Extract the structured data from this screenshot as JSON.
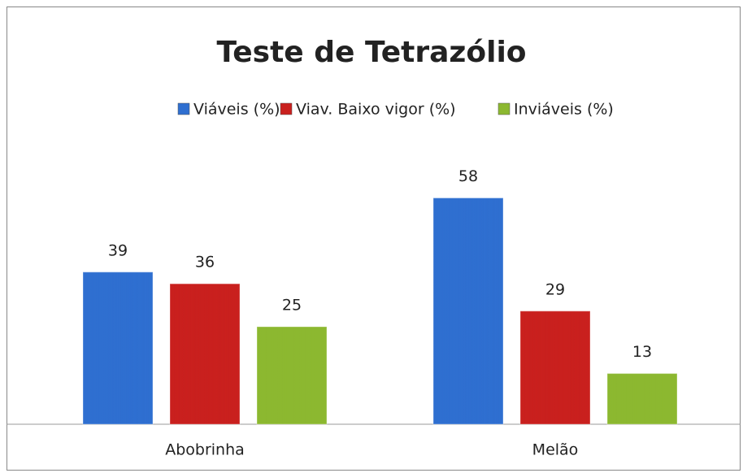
{
  "chart_data": {
    "type": "bar",
    "title": "Teste de Tetrazólio",
    "categories": [
      "Abobrinha",
      "Melão"
    ],
    "series": [
      {
        "name": "Viáveis (%)",
        "color": "#2f6fd0",
        "values": [
          39,
          58
        ]
      },
      {
        "name": "Viav. Baixo vigor (%)",
        "color": "#c9201e",
        "values": [
          36,
          29
        ]
      },
      {
        "name": "Inviáveis (%)",
        "color": "#8cb830",
        "values": [
          25,
          13
        ]
      }
    ],
    "ylim": [
      0,
      70
    ],
    "legend": "top"
  }
}
